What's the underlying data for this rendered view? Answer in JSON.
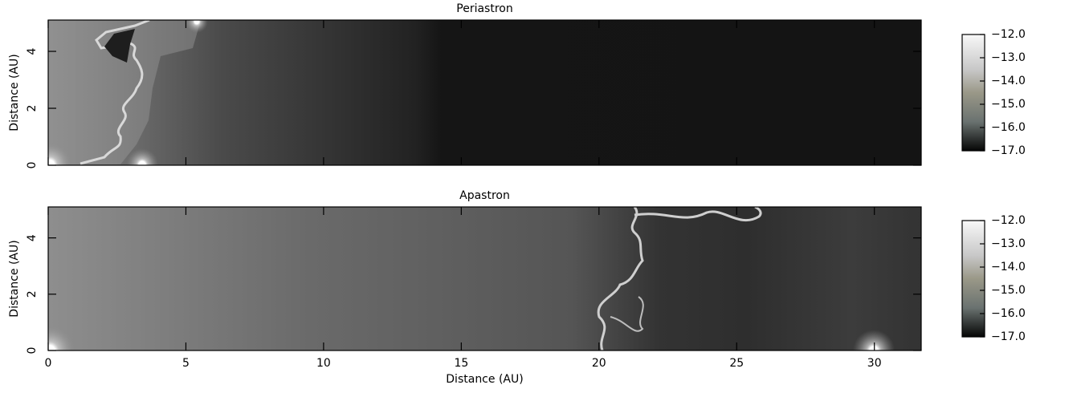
{
  "chart_data": [
    {
      "type": "image",
      "title": "Periastron",
      "ylabel": "Distance (AU)",
      "xlim": [
        0,
        31.7
      ],
      "xticks": [
        0,
        5,
        10,
        15,
        20,
        25,
        30
      ],
      "ylim": [
        0,
        5.1
      ],
      "yticks": [
        0,
        2,
        4
      ],
      "clim": [
        -17,
        -12
      ],
      "cticks": [
        {
          "value": -12,
          "label": "−12.0"
        },
        {
          "value": -13,
          "label": "−13.0"
        },
        {
          "value": -14,
          "label": "−14.0"
        },
        {
          "value": -15,
          "label": "−15.0"
        },
        {
          "value": -16,
          "label": "−16.0"
        },
        {
          "value": -17,
          "label": "−17.0"
        }
      ]
    },
    {
      "type": "image",
      "title": "Apastron",
      "ylabel": "Distance (AU)",
      "xlabel": "Distance (AU)",
      "xlim": [
        0,
        31.7
      ],
      "xticks": [
        0,
        5,
        10,
        15,
        20,
        25,
        30
      ],
      "ylim": [
        0,
        5.1
      ],
      "yticks": [
        0,
        2,
        4
      ],
      "clim": [
        -17,
        -12
      ],
      "cticks": [
        {
          "value": -12,
          "label": "−12.0"
        },
        {
          "value": -13,
          "label": "−13.0"
        },
        {
          "value": -14,
          "label": "−14.0"
        },
        {
          "value": -15,
          "label": "−15.0"
        },
        {
          "value": -16,
          "label": "−16.0"
        },
        {
          "value": -17,
          "label": "−17.0"
        }
      ]
    }
  ]
}
